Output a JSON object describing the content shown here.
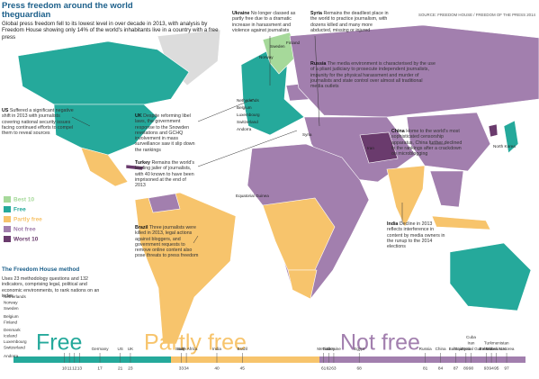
{
  "header": {
    "title": "Press freedom around the world",
    "brand": "theguardian",
    "subtitle": "Global press freedom fell to its lowest level in over decade in 2013, with analysis by Freedom House showing only 14% of the world's inhabitants live in a country with a free press",
    "source": "SOURCE: FREEDOM HOUSE / FREEDOM OF THE PRESS 2014"
  },
  "annotations": [
    {
      "heading": "US",
      "text": "Suffered a significant negative shift in 2013 with journalists covering national security issues facing continued efforts to compel them to reveal sources"
    },
    {
      "heading": "Ukraine",
      "text": "No longer classed as partly free due to a dramatic increase in harassment and violence against journalists"
    },
    {
      "heading": "Syria",
      "text": "Remains the deadliest place in the world to practice journalism, with dozens killed and many more abducted, missing or injured"
    },
    {
      "heading": "Russia",
      "text": "The media environment is characterised by the use of a pliant judiciary to prosecute independent journalists, impunity for the physical harassment and murder of journalists and state control over almost all traditional media outlets"
    },
    {
      "heading": "UK",
      "text": "Despite reforming libel laws, the government response to the Snowden revelations and GCHQ involvement in mass surveillance saw it slip down the rankings"
    },
    {
      "heading": "China",
      "text": "Home to the world's most sophisticated censorship apparatus, China further declined in the rankings after a crackdown on microblogging"
    },
    {
      "heading": "Turkey",
      "text": "Remains the world's leading jailer of journalists, with 40 known to have been imprisoned at the end of 2013"
    },
    {
      "heading": "Brazil",
      "text": "Three journalists were killed in 2013, legal actions against bloggers, and government requests to remove online content also pose threats to press freedom"
    },
    {
      "heading": "India",
      "text": "Decline in 2013 reflects interference in content by media owners in the runup to the 2014 elections"
    }
  ],
  "legend": [
    {
      "label": "Best 10",
      "color": "#a6d99a"
    },
    {
      "label": "Free",
      "color": "#25a99b"
    },
    {
      "label": "Partly free",
      "color": "#f7c46c"
    },
    {
      "label": "Not free",
      "color": "#a27fae"
    },
    {
      "label": "Worst 10",
      "color": "#6a3b6d"
    }
  ],
  "method": {
    "heading": "The Freedom House method",
    "text": "Uses 23 methodology questions and 132 indicators, comprising legal, political and economic environments, to rank nations on an index"
  },
  "map_labels": [
    "Norway",
    "Sweden",
    "Finland",
    "Netherlands",
    "Belgium",
    "Luxembourg",
    "Switzerland",
    "Andorra",
    "Syria",
    "Iran",
    "North Korea",
    "Equatorial Guinea"
  ],
  "scale": {
    "bands": [
      {
        "label": "Free",
        "color": "#25a99b"
      },
      {
        "label": "Partly free",
        "color": "#f7c46c"
      },
      {
        "label": "Not free",
        "color": "#a27fae"
      }
    ],
    "groups": [
      {
        "names": [
          "Netherlands",
          "Norway",
          "Sweden"
        ],
        "score": 10
      },
      {
        "names": [
          "Belgium",
          "Finland"
        ],
        "score": 11
      },
      {
        "names": [
          "Denmark",
          "Iceland",
          "Luxembourg",
          "Switzerland"
        ],
        "score": 12
      },
      {
        "names": [
          "Andorra"
        ],
        "score": 13
      },
      {
        "names": [
          "Germany"
        ],
        "score": 17
      },
      {
        "names": [
          "US"
        ],
        "score": 21
      },
      {
        "names": [
          "UK"
        ],
        "score": 23
      },
      {
        "names": [
          "Italy"
        ],
        "score": 33
      },
      {
        "names": [
          "South Africa"
        ],
        "score": 34
      },
      {
        "names": [
          "India"
        ],
        "score": 40
      },
      {
        "names": [
          "Brazil"
        ],
        "score": 45
      },
      {
        "names": [
          "Mexico"
        ],
        "score": 61
      },
      {
        "names": [
          "Turkey"
        ],
        "score": 62
      },
      {
        "names": [
          "Ukraine"
        ],
        "score": 63
      },
      {
        "names": [
          "Egypt"
        ],
        "score": 68
      },
      {
        "names": [
          "Russia"
        ],
        "score": 81
      },
      {
        "names": [
          "China"
        ],
        "score": 84
      },
      {
        "names": [
          "Bahrain"
        ],
        "score": 87
      },
      {
        "names": [
          "Syria"
        ],
        "score": 89
      },
      {
        "names": [
          "Cuba",
          "Iran",
          "Equatorial Guinea"
        ],
        "score": 90
      },
      {
        "names": [
          "Belarus"
        ],
        "score": 93
      },
      {
        "names": [
          "Eritrea"
        ],
        "score": 94
      },
      {
        "names": [
          "Turkmenistan",
          "Uzbekistan"
        ],
        "score": 95
      },
      {
        "names": [
          "N Korea"
        ],
        "score": 97
      }
    ]
  }
}
